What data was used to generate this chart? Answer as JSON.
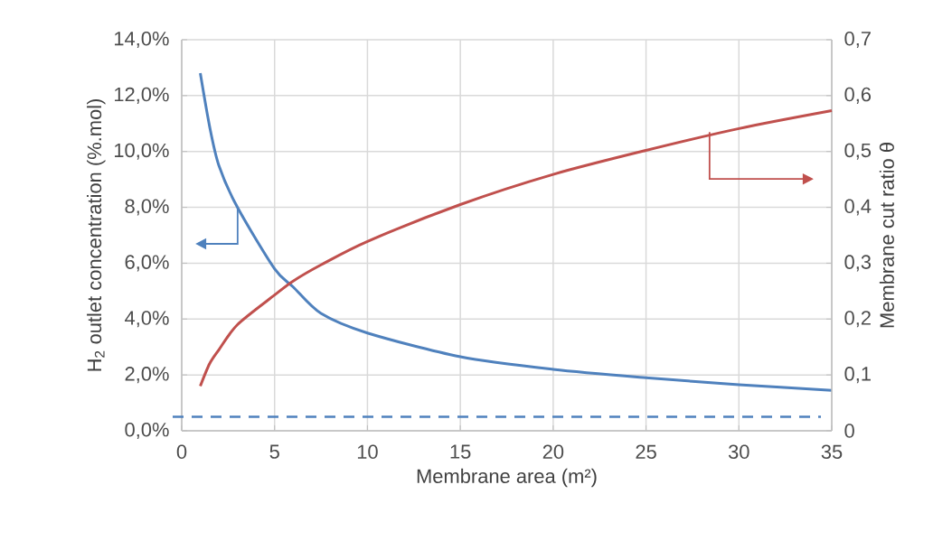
{
  "chart_data": {
    "type": "line",
    "xlabel": "Membrane area (m²)",
    "ylabel": "H$_{2}$ outlet concentration (%.mol)",
    "y2label": "Membrane cut ratio θ",
    "x": [
      1,
      1.5,
      2,
      3,
      5,
      6,
      7.5,
      10,
      15,
      20,
      25,
      30,
      35
    ],
    "series": [
      {
        "color": "#4f81bd",
        "values": [
          12.8,
          10.9,
          9.5,
          8.0,
          5.8,
          5.15,
          4.2,
          3.5,
          2.65,
          2.2,
          1.9,
          1.65,
          1.45
        ]
      },
      {
        "color": "#c0504d",
        "axis": "y2",
        "values": [
          0.08,
          0.12,
          0.145,
          0.19,
          0.243,
          0.268,
          0.297,
          0.339,
          0.405,
          0.459,
          0.502,
          0.541,
          0.573
        ]
      }
    ],
    "xlim": [
      0,
      35
    ],
    "xticks": [
      0,
      5,
      10,
      15,
      20,
      25,
      30,
      35
    ],
    "ylim": [
      0,
      14
    ],
    "yticks": [
      {
        "value": 0,
        "label": "0,0%"
      },
      {
        "value": 2,
        "label": "2,0%"
      },
      {
        "value": 4,
        "label": "4,0%"
      },
      {
        "value": 6,
        "label": "6,0%"
      },
      {
        "value": 8,
        "label": "8,0%"
      },
      {
        "value": 10,
        "label": "10,0%"
      },
      {
        "value": 12,
        "label": "12,0%"
      },
      {
        "value": 14,
        "label": "14,0%"
      }
    ],
    "y2lim": [
      0,
      0.7
    ],
    "y2ticks": [
      0,
      {
        "value": 0.1,
        "label": "0,1"
      },
      {
        "value": 0.2,
        "label": "0,2"
      },
      {
        "value": 0.3,
        "label": "0,3"
      },
      {
        "value": 0.4,
        "label": "0,4"
      },
      {
        "value": 0.5,
        "label": "0,5"
      },
      {
        "value": 0.6,
        "label": "0,6"
      },
      {
        "value": 0.7,
        "label": "0,7"
      }
    ],
    "ref_lines": [
      {
        "axis": "y",
        "value": 0.5,
        "color": "#4f81bd",
        "line_style": "dashed"
      }
    ],
    "grid": true,
    "marker": "none",
    "line_style": "solid"
  }
}
